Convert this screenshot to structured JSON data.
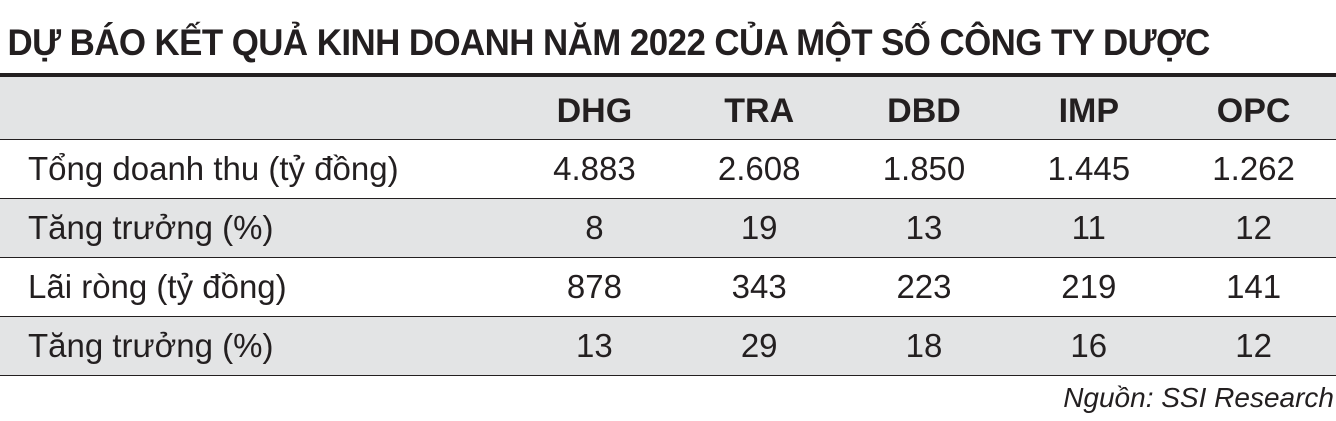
{
  "title": "DỰ BÁO KẾT QUẢ KINH DOANH NĂM 2022 CỦA MỘT SỐ CÔNG TY DƯỢC",
  "columns": [
    "DHG",
    "TRA",
    "DBD",
    "IMP",
    "OPC"
  ],
  "rows": [
    {
      "label": "Tổng doanh thu (tỷ đồng)",
      "values": [
        "4.883",
        "2.608",
        "1.850",
        "1.445",
        "1.262"
      ]
    },
    {
      "label": "Tăng trưởng (%)",
      "values": [
        "8",
        "19",
        "13",
        "11",
        "12"
      ]
    },
    {
      "label": "Lãi ròng (tỷ đồng)",
      "values": [
        "878",
        "343",
        "223",
        "219",
        "141"
      ]
    },
    {
      "label": "Tăng trưởng (%)",
      "values": [
        "13",
        "29",
        "18",
        "16",
        "12"
      ]
    }
  ],
  "source": "Nguồn: SSI Research",
  "colors": {
    "text": "#231f20",
    "shaded_row": "#e3e4e5",
    "background": "#ffffff"
  }
}
